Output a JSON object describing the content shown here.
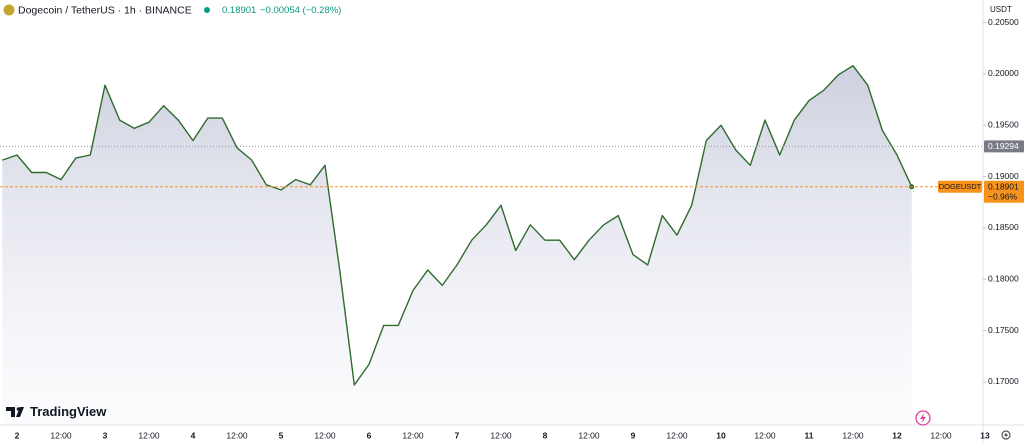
{
  "header": {
    "title": "Dogecoin / TetherUS · 1h · BINANCE",
    "price": "0.18901",
    "change": "−0.00054 (−0.28%)"
  },
  "brand": "TradingView",
  "chart_data": {
    "type": "area",
    "axis_unit": "USDT",
    "categories": [
      null,
      "2",
      null,
      null,
      "12:00",
      null,
      null,
      "3",
      null,
      null,
      "12:00",
      null,
      null,
      "4",
      null,
      null,
      "12:00",
      null,
      null,
      "5",
      null,
      null,
      "12:00",
      null,
      null,
      "6",
      null,
      null,
      "12:00",
      null,
      null,
      "7",
      null,
      null,
      "12:00",
      null,
      null,
      "8",
      null,
      null,
      "12:00",
      null,
      null,
      "9",
      null,
      null,
      "12:00",
      null,
      null,
      "10",
      null,
      null,
      "12:00",
      null,
      null,
      "11",
      null,
      null,
      "12:00",
      null,
      null,
      "12",
      null,
      null,
      "12:00",
      null,
      null,
      "13"
    ],
    "series": [
      {
        "name": "DOGEUSDT",
        "color": "#2e6b2e",
        "values": [
          0.1916,
          0.1921,
          0.1904,
          0.1904,
          0.1897,
          0.1918,
          0.1921,
          0.1989,
          0.1955,
          0.1947,
          0.1953,
          0.1969,
          0.1955,
          0.1935,
          0.1957,
          0.1957,
          0.1928,
          0.1916,
          0.1892,
          0.1887,
          0.1897,
          0.1892,
          0.1911,
          0.1809,
          0.1697,
          0.1717,
          0.1755,
          0.1755,
          0.1789,
          0.1809,
          0.1794,
          0.1814,
          0.1838,
          0.1853,
          0.1872,
          0.1828,
          0.1853,
          0.1838,
          0.1838,
          0.1819,
          0.1838,
          0.1853,
          0.1862,
          0.1824,
          0.1814,
          0.1862,
          0.1843,
          0.1872,
          0.1935,
          0.195,
          0.1926,
          0.1911,
          0.1955,
          0.1921,
          0.1955,
          0.1974,
          0.1984,
          0.1999,
          0.2008,
          0.1989,
          0.1945,
          0.1921,
          0.18901,
          null,
          null,
          null,
          null,
          null
        ]
      }
    ],
    "last_value": 0.18901,
    "last_change": "−0.96%",
    "last_color": "#f7931a",
    "reference_line": 0.19294,
    "ylim": [
      0.1658,
      0.2072
    ],
    "yticks": [
      {
        "value": 0.205,
        "label": "0.20500"
      },
      {
        "value": 0.2,
        "label": "0.20000"
      },
      {
        "value": 0.195,
        "label": "0.19500"
      },
      {
        "value": 0.19,
        "label": "0.19000"
      },
      {
        "value": 0.185,
        "label": "0.18500"
      },
      {
        "value": 0.18,
        "label": "0.18000"
      },
      {
        "value": 0.175,
        "label": "0.17500"
      },
      {
        "value": 0.17,
        "label": "0.17000"
      }
    ],
    "grid": false
  }
}
